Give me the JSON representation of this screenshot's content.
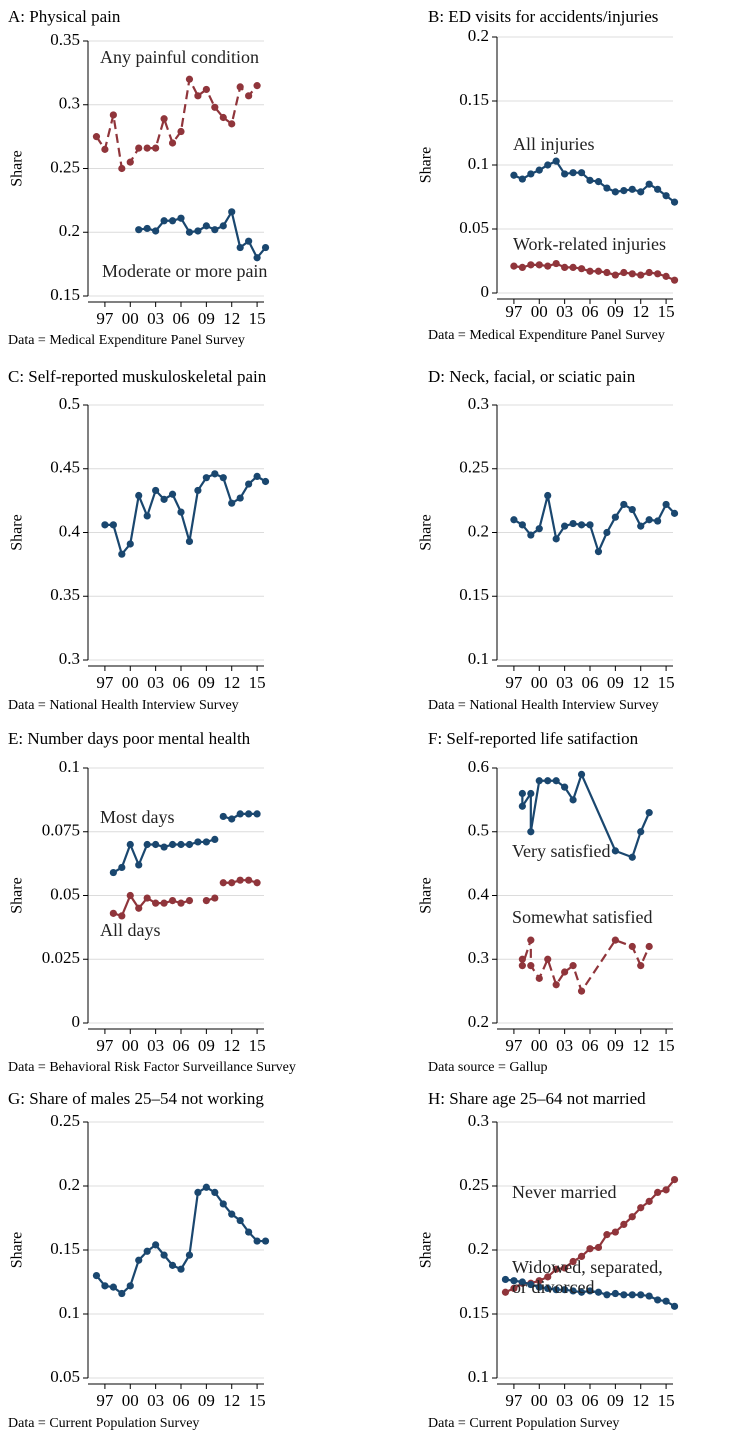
{
  "chart_data": [
    {
      "type": "line",
      "title": "A: Physical pain",
      "ylabel": "Share",
      "note": "Data = Medical Expenditure Panel Survey",
      "xlim": [
        1995,
        2017
      ],
      "xticks": [
        {
          "value": 1997,
          "label": "97"
        },
        {
          "value": 2000,
          "label": "00"
        },
        {
          "value": 2003,
          "label": "03"
        },
        {
          "value": 2006,
          "label": "06"
        },
        {
          "value": 2009,
          "label": "09"
        },
        {
          "value": 2012,
          "label": "12"
        },
        {
          "value": 2015,
          "label": "15"
        }
      ],
      "ylim": [
        0.15,
        0.35
      ],
      "yticks": [
        0.15,
        0.2,
        0.25,
        0.3,
        0.35
      ],
      "grid": true,
      "series": [
        {
          "name": "Any painful condition",
          "color": "#90353b",
          "dash": true,
          "x": [
            1996,
            1997,
            1998,
            1999,
            2000,
            2001,
            2002,
            2003,
            2004,
            2005,
            2006,
            2007,
            2008,
            2009,
            2010,
            2011,
            2012,
            2013,
            2014,
            2015
          ],
          "values": [
            0.275,
            0.265,
            0.292,
            0.25,
            0.255,
            0.266,
            0.266,
            0.266,
            0.289,
            0.27,
            0.279,
            0.32,
            0.307,
            0.312,
            0.298,
            0.29,
            0.285,
            0.314,
            0.307,
            0.315
          ]
        },
        {
          "name": "Moderate or more pain",
          "color": "#1a476f",
          "dash": false,
          "x": [
            2001,
            2002,
            2003,
            2004,
            2005,
            2006,
            2007,
            2008,
            2009,
            2010,
            2011,
            2012,
            2013,
            2014,
            2015,
            2016
          ],
          "values": [
            0.202,
            0.203,
            0.201,
            0.209,
            0.209,
            0.211,
            0.2,
            0.201,
            0.205,
            0.202,
            0.205,
            0.216,
            0.188,
            0.193,
            0.18,
            0.188
          ]
        }
      ]
    },
    {
      "type": "line",
      "title": "B: ED visits for accidents/injuries",
      "ylabel": "Share",
      "note": "Data = Medical Expenditure Panel Survey",
      "xlim": [
        1995,
        2017
      ],
      "xticks": [
        {
          "value": 1997,
          "label": "97"
        },
        {
          "value": 2000,
          "label": "00"
        },
        {
          "value": 2003,
          "label": "03"
        },
        {
          "value": 2006,
          "label": "06"
        },
        {
          "value": 2009,
          "label": "09"
        },
        {
          "value": 2012,
          "label": "12"
        },
        {
          "value": 2015,
          "label": "15"
        }
      ],
      "ylim": [
        0,
        0.2
      ],
      "yticks": [
        0,
        0.05,
        0.1,
        0.15,
        0.2
      ],
      "grid": true,
      "series": [
        {
          "name": "All injuries",
          "color": "#1a476f",
          "dash": false,
          "x": [
            1997,
            1998,
            1999,
            2000,
            2001,
            2002,
            2003,
            2004,
            2005,
            2006,
            2007,
            2008,
            2009,
            2010,
            2011,
            2012,
            2013,
            2014,
            2015,
            2016
          ],
          "values": [
            0.092,
            0.089,
            0.093,
            0.096,
            0.1,
            0.103,
            0.093,
            0.094,
            0.094,
            0.088,
            0.087,
            0.082,
            0.079,
            0.08,
            0.081,
            0.079,
            0.085,
            0.081,
            0.076,
            0.071
          ]
        },
        {
          "name": "Work-related injuries",
          "color": "#90353b",
          "dash": false,
          "x": [
            1997,
            1998,
            1999,
            2000,
            2001,
            2002,
            2003,
            2004,
            2005,
            2006,
            2007,
            2008,
            2009,
            2010,
            2011,
            2012,
            2013,
            2014,
            2015,
            2016
          ],
          "values": [
            0.021,
            0.02,
            0.022,
            0.022,
            0.021,
            0.023,
            0.02,
            0.02,
            0.019,
            0.017,
            0.017,
            0.016,
            0.014,
            0.016,
            0.015,
            0.014,
            0.016,
            0.015,
            0.013,
            0.01
          ]
        }
      ]
    },
    {
      "type": "line",
      "title": "C: Self-reported muskuloskeletal pain",
      "ylabel": "Share",
      "note": "Data = National Health Interview Survey",
      "xlim": [
        1995,
        2017
      ],
      "xticks": [
        {
          "value": 1997,
          "label": "97"
        },
        {
          "value": 2000,
          "label": "00"
        },
        {
          "value": 2003,
          "label": "03"
        },
        {
          "value": 2006,
          "label": "06"
        },
        {
          "value": 2009,
          "label": "09"
        },
        {
          "value": 2012,
          "label": "12"
        },
        {
          "value": 2015,
          "label": "15"
        }
      ],
      "ylim": [
        0.3,
        0.5
      ],
      "yticks": [
        0.3,
        0.35,
        0.4,
        0.45,
        0.5
      ],
      "grid": true,
      "series": [
        {
          "color": "#1a476f",
          "dash": false,
          "x": [
            1997,
            1998,
            1999,
            2000,
            2001,
            2002,
            2003,
            2004,
            2005,
            2006,
            2007,
            2008,
            2009,
            2010,
            2011,
            2012,
            2013,
            2014,
            2015,
            2016
          ],
          "values": [
            0.406,
            0.406,
            0.383,
            0.391,
            0.429,
            0.413,
            0.433,
            0.426,
            0.43,
            0.416,
            0.393,
            0.433,
            0.443,
            0.446,
            0.443,
            0.423,
            0.427,
            0.438,
            0.444,
            0.44
          ]
        }
      ]
    },
    {
      "type": "line",
      "title": "D: Neck, facial, or sciatic pain",
      "ylabel": "Share",
      "note": "Data = National Health Interview Survey",
      "xlim": [
        1995,
        2017
      ],
      "xticks": [
        {
          "value": 1997,
          "label": "97"
        },
        {
          "value": 2000,
          "label": "00"
        },
        {
          "value": 2003,
          "label": "03"
        },
        {
          "value": 2006,
          "label": "06"
        },
        {
          "value": 2009,
          "label": "09"
        },
        {
          "value": 2012,
          "label": "12"
        },
        {
          "value": 2015,
          "label": "15"
        }
      ],
      "ylim": [
        0.1,
        0.3
      ],
      "yticks": [
        0.1,
        0.15,
        0.2,
        0.25,
        0.3
      ],
      "grid": true,
      "series": [
        {
          "color": "#1a476f",
          "dash": false,
          "x": [
            1997,
            1998,
            1999,
            2000,
            2001,
            2002,
            2003,
            2004,
            2005,
            2006,
            2007,
            2008,
            2009,
            2010,
            2011,
            2012,
            2013,
            2014,
            2015,
            2016
          ],
          "values": [
            0.21,
            0.206,
            0.198,
            0.203,
            0.229,
            0.195,
            0.205,
            0.207,
            0.206,
            0.206,
            0.185,
            0.2,
            0.212,
            0.222,
            0.218,
            0.205,
            0.21,
            0.209,
            0.222,
            0.215
          ]
        }
      ]
    },
    {
      "type": "line",
      "title": "E: Number days poor mental health",
      "ylabel": "Share",
      "note": "Data = Behavioral Risk Factor Surveillance Survey",
      "xlim": [
        1995,
        2017
      ],
      "xticks": [
        {
          "value": 1997,
          "label": "97"
        },
        {
          "value": 2000,
          "label": "00"
        },
        {
          "value": 2003,
          "label": "03"
        },
        {
          "value": 2006,
          "label": "06"
        },
        {
          "value": 2009,
          "label": "09"
        },
        {
          "value": 2012,
          "label": "12"
        },
        {
          "value": 2015,
          "label": "15"
        }
      ],
      "ylim": [
        0,
        0.1
      ],
      "yticks": [
        0,
        0.025,
        0.05,
        0.075,
        0.1
      ],
      "grid": true,
      "series": [
        {
          "name": "Most days",
          "color": "#1a476f",
          "dash": false,
          "x": [
            1998,
            1999,
            2000,
            2001,
            2002,
            2003,
            2004,
            2005,
            2006,
            2007,
            2008,
            2009,
            2010
          ],
          "values": [
            0.059,
            0.061,
            0.07,
            0.062,
            0.07,
            0.07,
            0.069,
            0.07,
            0.07,
            0.07,
            0.071,
            0.071,
            0.072
          ]
        },
        {
          "color": "#1a476f",
          "dash": false,
          "x": [
            2011,
            2012,
            2013,
            2014,
            2015
          ],
          "values": [
            0.081,
            0.08,
            0.082,
            0.082,
            0.082
          ]
        },
        {
          "name": "All days",
          "color": "#90353b",
          "dash": false,
          "x": [
            1998,
            1999,
            2000,
            2001,
            2002,
            2003,
            2004,
            2005,
            2006,
            2007
          ],
          "values": [
            0.043,
            0.042,
            0.05,
            0.045,
            0.049,
            0.047,
            0.047,
            0.048,
            0.047,
            0.048
          ]
        },
        {
          "color": "#90353b",
          "dash": false,
          "x": [
            2009,
            2010
          ],
          "values": [
            0.048,
            0.049
          ]
        },
        {
          "color": "#90353b",
          "dash": false,
          "x": [
            2011,
            2012,
            2013,
            2014,
            2015
          ],
          "values": [
            0.055,
            0.055,
            0.056,
            0.056,
            0.055
          ]
        }
      ]
    },
    {
      "type": "line",
      "title": "F: Self-reported life satifaction",
      "ylabel": "Share",
      "note": "Data source = Gallup",
      "xlim": [
        1995,
        2017
      ],
      "xticks": [
        {
          "value": 1997,
          "label": "97"
        },
        {
          "value": 2000,
          "label": "00"
        },
        {
          "value": 2003,
          "label": "03"
        },
        {
          "value": 2006,
          "label": "06"
        },
        {
          "value": 2009,
          "label": "09"
        },
        {
          "value": 2012,
          "label": "12"
        },
        {
          "value": 2015,
          "label": "15"
        }
      ],
      "ylim": [
        0.2,
        0.6
      ],
      "yticks": [
        0.2,
        0.3,
        0.4,
        0.5,
        0.6
      ],
      "grid": true,
      "series": [
        {
          "name": "Very satisfied",
          "color": "#1a476f",
          "dash": false,
          "x": [
            1998,
            1998,
            1999,
            1999,
            2000,
            2001,
            2002,
            2003,
            2004,
            2005,
            2009,
            2011,
            2012,
            2013
          ],
          "values": [
            0.56,
            0.54,
            0.56,
            0.5,
            0.58,
            0.58,
            0.58,
            0.57,
            0.55,
            0.59,
            0.47,
            0.46,
            0.5,
            0.53
          ]
        },
        {
          "name": "Somewhat satisfied",
          "color": "#90353b",
          "dash": true,
          "x": [
            1998,
            1998,
            1999,
            1999,
            2000,
            2001,
            2002,
            2003,
            2004,
            2005,
            2009,
            2011,
            2012,
            2013
          ],
          "values": [
            0.3,
            0.29,
            0.33,
            0.29,
            0.27,
            0.3,
            0.26,
            0.28,
            0.29,
            0.25,
            0.33,
            0.32,
            0.29,
            0.32
          ]
        }
      ]
    },
    {
      "type": "line",
      "title": "G: Share of males 25–54 not working",
      "ylabel": "Share",
      "note": "Data = Current Population Survey",
      "xlim": [
        1995,
        2017
      ],
      "xticks": [
        {
          "value": 1997,
          "label": "97"
        },
        {
          "value": 2000,
          "label": "00"
        },
        {
          "value": 2003,
          "label": "03"
        },
        {
          "value": 2006,
          "label": "06"
        },
        {
          "value": 2009,
          "label": "09"
        },
        {
          "value": 2012,
          "label": "12"
        },
        {
          "value": 2015,
          "label": "15"
        }
      ],
      "ylim": [
        0.05,
        0.25
      ],
      "yticks": [
        0.05,
        0.1,
        0.15,
        0.2,
        0.25
      ],
      "grid": true,
      "series": [
        {
          "color": "#1a476f",
          "dash": false,
          "x": [
            1996,
            1997,
            1998,
            1999,
            2000,
            2001,
            2002,
            2003,
            2004,
            2005,
            2006,
            2007,
            2008,
            2009,
            2010,
            2011,
            2012,
            2013,
            2014,
            2015,
            2016
          ],
          "values": [
            0.13,
            0.122,
            0.121,
            0.116,
            0.122,
            0.142,
            0.149,
            0.154,
            0.146,
            0.138,
            0.135,
            0.146,
            0.195,
            0.199,
            0.195,
            0.186,
            0.178,
            0.173,
            0.164,
            0.157,
            0.157
          ]
        }
      ]
    },
    {
      "type": "line",
      "title": "H: Share age 25–64 not married",
      "ylabel": "Share",
      "note": "Data = Current Population Survey",
      "xlim": [
        1995,
        2017
      ],
      "xticks": [
        {
          "value": 1997,
          "label": "97"
        },
        {
          "value": 2000,
          "label": "00"
        },
        {
          "value": 2003,
          "label": "03"
        },
        {
          "value": 2006,
          "label": "06"
        },
        {
          "value": 2009,
          "label": "09"
        },
        {
          "value": 2012,
          "label": "12"
        },
        {
          "value": 2015,
          "label": "15"
        }
      ],
      "ylim": [
        0.1,
        0.3
      ],
      "yticks": [
        0.1,
        0.15,
        0.2,
        0.25,
        0.3
      ],
      "grid": true,
      "series": [
        {
          "name": "Never married",
          "color": "#90353b",
          "dash": false,
          "x": [
            1996,
            1997,
            1998,
            1999,
            2000,
            2001,
            2002,
            2003,
            2004,
            2005,
            2006,
            2007,
            2008,
            2009,
            2010,
            2011,
            2012,
            2013,
            2014,
            2015,
            2016
          ],
          "values": [
            0.167,
            0.17,
            0.174,
            0.174,
            0.176,
            0.179,
            0.185,
            0.186,
            0.191,
            0.195,
            0.201,
            0.202,
            0.212,
            0.214,
            0.22,
            0.226,
            0.233,
            0.238,
            0.245,
            0.247,
            0.255
          ]
        },
        {
          "name": "Widowed, separated, or divorced",
          "color": "#1a476f",
          "dash": false,
          "x": [
            1996,
            1997,
            1998,
            1999,
            2000,
            2001,
            2002,
            2003,
            2004,
            2005,
            2006,
            2007,
            2008,
            2009,
            2010,
            2011,
            2012,
            2013,
            2014,
            2015,
            2016
          ],
          "values": [
            0.177,
            0.176,
            0.175,
            0.173,
            0.171,
            0.17,
            0.169,
            0.169,
            0.168,
            0.167,
            0.168,
            0.167,
            0.165,
            0.166,
            0.165,
            0.165,
            0.165,
            0.164,
            0.161,
            0.16,
            0.156
          ]
        }
      ]
    }
  ]
}
